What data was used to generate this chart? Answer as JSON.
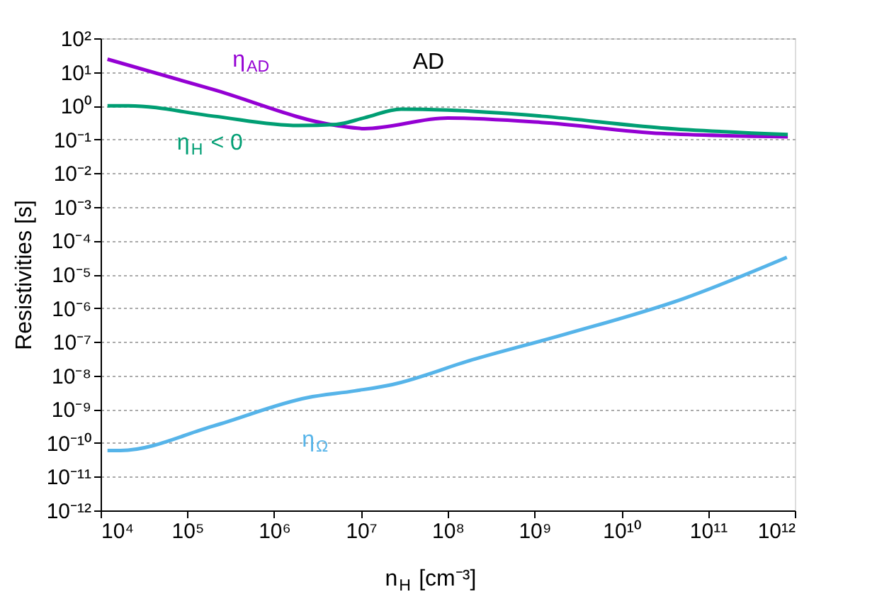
{
  "chart_data": {
    "type": "line",
    "title": "AD",
    "xlabel": "n$_{H}$ [cm⁻³]",
    "ylabel": "Resistivities [s]",
    "log": "xy",
    "grid": "y",
    "line_style": "solid",
    "marker": "none",
    "xlim": [
      10000,
      1000000000000
    ],
    "xticks": [
      {
        "value": 10000,
        "label": "10⁴"
      },
      {
        "value": 100000,
        "label": "10⁵"
      },
      {
        "value": 1000000,
        "label": "10⁶"
      },
      {
        "value": 10000000,
        "label": "10⁷"
      },
      {
        "value": 100000000,
        "label": "10⁸"
      },
      {
        "value": 1000000000,
        "label": "10⁹"
      },
      {
        "value": 10000000000,
        "label": "10¹⁰"
      },
      {
        "value": 100000000000,
        "label": "10¹¹"
      },
      {
        "value": 1000000000000,
        "label": "10¹²"
      }
    ],
    "ylim": [
      1e-12,
      100
    ],
    "yticks": [
      {
        "value": 100,
        "label": "10²"
      },
      {
        "value": 10,
        "label": "10¹"
      },
      {
        "value": 1,
        "label": "10⁰"
      },
      {
        "value": 0.1,
        "label": "10⁻¹"
      },
      {
        "value": 0.01,
        "label": "10⁻²"
      },
      {
        "value": 0.001,
        "label": "10⁻³"
      },
      {
        "value": 0.0001,
        "label": "10⁻⁴"
      },
      {
        "value": 1e-05,
        "label": "10⁻⁵"
      },
      {
        "value": 1e-06,
        "label": "10⁻⁶"
      },
      {
        "value": 1e-07,
        "label": "10⁻⁷"
      },
      {
        "value": 1e-08,
        "label": "10⁻⁸"
      },
      {
        "value": 1e-09,
        "label": "10⁻⁹"
      },
      {
        "value": 1e-10,
        "label": "10⁻¹⁰"
      },
      {
        "value": 1e-11,
        "label": "10⁻¹¹"
      },
      {
        "value": 1e-12,
        "label": "10⁻¹²"
      }
    ],
    "series": [
      {
        "name": "η$_{AD}$",
        "color": "#9400d3",
        "x": [
          12000,
          200000,
          5200000,
          11000000,
          100000000,
          1200000000,
          29000000000,
          830000000000
        ],
        "values": [
          24,
          3.0,
          0.26,
          0.21,
          0.43,
          0.32,
          0.15,
          0.12
        ]
      },
      {
        "name": "η$_{H}$ < 0",
        "color": "#009e73",
        "x": [
          12000,
          21000,
          200000,
          1900000,
          5200000,
          11000000,
          29000000,
          100000000,
          1200000000,
          29000000000,
          830000000000
        ],
        "values": [
          1.0,
          1.0,
          0.49,
          0.26,
          0.28,
          0.44,
          0.79,
          0.74,
          0.49,
          0.22,
          0.14
        ]
      },
      {
        "name": "η$_{Ω}$",
        "color": "#56b4e9",
        "x": [
          12000,
          17000,
          200000,
          2400000,
          8500000,
          23000000,
          190000000,
          2300000000,
          52000000000,
          810000000000
        ],
        "values": [
          6e-11,
          6e-11,
          3.2e-10,
          2.2e-09,
          3.5e-09,
          5.4e-09,
          2.9e-08,
          1.7e-07,
          1.9e-06,
          3.2e-05
        ]
      }
    ]
  }
}
